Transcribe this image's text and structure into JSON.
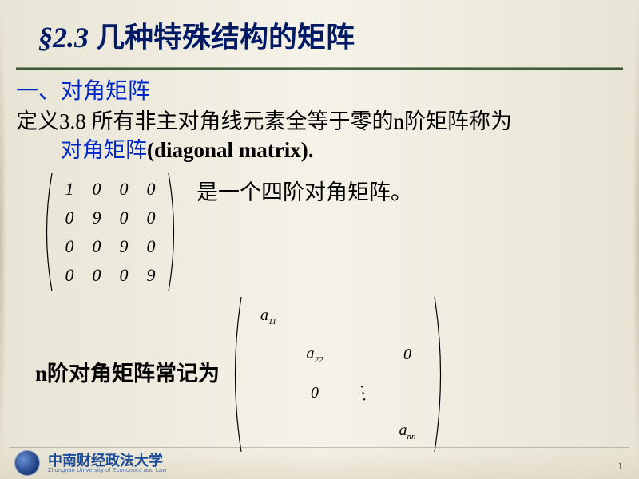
{
  "colors": {
    "title_color": "#001a66",
    "accent_blue": "#0028c8",
    "body_text": "#000000",
    "rule_color": "#3b5838",
    "background": "#f0ede4"
  },
  "title": {
    "section": "§2.3",
    "text": "几种特殊结构的矩阵",
    "fontsize": 36
  },
  "heading1": "一、对角矩阵",
  "definition": {
    "label": "定义3.8",
    "body": "所有非主对角线元素全等于零的n阶矩阵称为",
    "term": "对角矩阵",
    "term_paren": "(diagonal matrix)."
  },
  "example_matrix": {
    "type": "matrix",
    "rows": 4,
    "cols": 4,
    "cells": [
      [
        "1",
        "0",
        "0",
        "0"
      ],
      [
        "0",
        "9",
        "0",
        "0"
      ],
      [
        "0",
        "0",
        "9",
        "0"
      ],
      [
        "0",
        "0",
        "0",
        "9"
      ]
    ],
    "cell_fontsize": 22,
    "paren_stroke": "#000000",
    "caption_right": "是一个四阶对角矩阵。"
  },
  "notation_line": "n阶对角矩阵常记为",
  "general_matrix": {
    "type": "matrix",
    "diag_entries": [
      "a_11",
      "a_22",
      "…",
      "a_nn"
    ],
    "upper_zero": "0",
    "lower_zero": "0",
    "ddots": "⋱",
    "cell_fontsize": 20,
    "rows": 4,
    "cols": 4
  },
  "footer": {
    "university_zh": "中南财经政法大学",
    "university_en": "Zhongnan University of Economics and Law",
    "page_number": "1"
  }
}
